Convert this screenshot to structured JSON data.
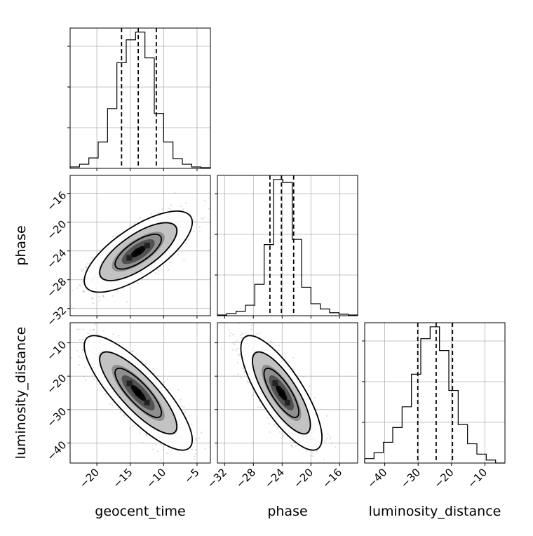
{
  "chart_data": {
    "type": "corner",
    "parameters": [
      "geocent_time",
      "phase",
      "luminosity_distance"
    ],
    "axis_labels": {
      "x": [
        "geocent_time",
        "phase",
        "luminosity_distance"
      ],
      "y": [
        "",
        "phase",
        "luminosity_distance"
      ]
    },
    "ranges": {
      "geocent_time": [
        -24,
        -3
      ],
      "phase": [
        -33,
        -13.5
      ],
      "luminosity_distance": [
        -46,
        -4
      ]
    },
    "ticks": {
      "geocent_time": [
        -20,
        -15,
        -10,
        -5
      ],
      "phase": [
        -32,
        -28,
        -24,
        -20,
        -16
      ],
      "luminosity_distance": [
        -40,
        -30,
        -20,
        -10
      ]
    },
    "tick_labels": {
      "geocent_time": [
        "−20",
        "−15",
        "−10",
        "−5"
      ],
      "phase": [
        "−32",
        "−28",
        "−24",
        "−20",
        "−16"
      ],
      "luminosity_distance": [
        "−40",
        "−30",
        "−20",
        "−10"
      ]
    },
    "marginals": [
      {
        "parameter": "geocent_time",
        "bin_edges": [
          -24,
          -22.6,
          -21.2,
          -19.8,
          -18.4,
          -17,
          -15.6,
          -14.2,
          -12.8,
          -11.4,
          -10,
          -8.6,
          -7.2,
          -5.8,
          -4.4,
          -3
        ],
        "counts": [
          2,
          6,
          15,
          38,
          86,
          152,
          185,
          196,
          159,
          79,
          38,
          14,
          6,
          2,
          1
        ],
        "quantiles": [
          -16.3,
          -13.8,
          -11.1
        ]
      },
      {
        "parameter": "phase",
        "bin_edges": [
          -33,
          -31.7,
          -30.4,
          -29.1,
          -27.8,
          -26.5,
          -25.2,
          -23.9,
          -22.6,
          -21.3,
          -20,
          -18.7,
          -17.4,
          -16.1,
          -14.8,
          -13.5
        ],
        "counts": [
          1,
          3,
          6,
          14,
          42,
          95,
          182,
          178,
          102,
          38,
          16,
          9,
          4,
          2,
          1
        ],
        "quantiles": [
          -25.7,
          -24.1,
          -22.4
        ]
      },
      {
        "parameter": "luminosity_distance",
        "bin_edges": [
          -46,
          -43.2,
          -40.4,
          -37.6,
          -34.8,
          -32,
          -29.2,
          -26.4,
          -23.6,
          -20.8,
          -18,
          -15.2,
          -12.4,
          -9.6,
          -6.8,
          -4
        ],
        "counts": [
          3,
          7,
          14,
          24,
          38,
          60,
          84,
          92,
          76,
          49,
          26,
          13,
          6,
          2,
          0
        ],
        "quantiles": [
          -30.1,
          -24.6,
          -19.7
        ]
      }
    ],
    "joint": [
      {
        "x": "geocent_time",
        "y": "phase",
        "mean": [
          -13.8,
          -24.1
        ],
        "sd": [
          3.3,
          2.3
        ],
        "corr": 0.72,
        "contours": 3
      },
      {
        "x": "geocent_time",
        "y": "luminosity_distance",
        "mean": [
          -13.8,
          -25.0
        ],
        "sd": [
          3.3,
          7.0
        ],
        "corr": -0.82,
        "contours": 3
      },
      {
        "x": "phase",
        "y": "luminosity_distance",
        "mean": [
          -24.1,
          -25.0
        ],
        "sd": [
          2.3,
          7.0
        ],
        "corr": -0.78,
        "contours": 3
      }
    ],
    "grid": true,
    "colors": {
      "line": "#000000",
      "grid": "#b0b0b0",
      "scatter": "#9a9a9a",
      "hist2d_levels": [
        "#e8e8e8",
        "#bdbdbd",
        "#8a8a8a",
        "#4a4a4a",
        "#000000"
      ]
    }
  }
}
